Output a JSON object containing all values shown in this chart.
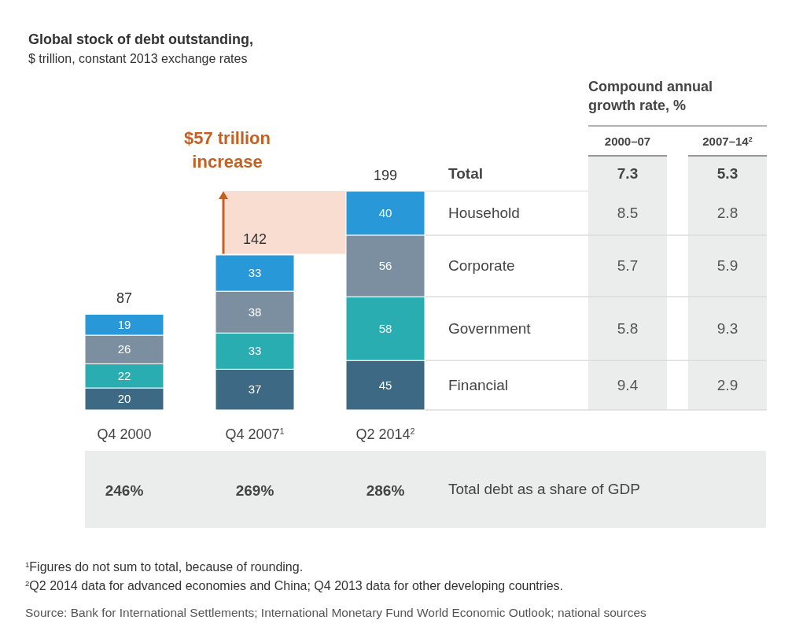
{
  "chart_data": {
    "type": "bar",
    "title": "Global stock of debt outstanding,",
    "subtitle": "$ trillion, constant 2013 exchange rates",
    "categories": [
      "Q4 2000",
      "Q4 2007$^{1}$",
      "Q2 2014$^{2}$"
    ],
    "stacked": true,
    "data_labels": true,
    "totals": [
      "87",
      "142",
      "199"
    ],
    "series": [
      {
        "name": "Financial",
        "color": "#3e6984",
        "values": [
          20,
          37,
          45
        ]
      },
      {
        "name": "Government",
        "color": "#29adb1",
        "values": [
          22,
          33,
          58
        ]
      },
      {
        "name": "Corporate",
        "color": "#7b8fa1",
        "values": [
          26,
          38,
          56
        ]
      },
      {
        "name": "Household",
        "color": "#2898d8",
        "values": [
          19,
          33,
          40
        ]
      }
    ],
    "bands": [
      {
        "axis": "y",
        "from": 142,
        "to": 199,
        "label": "$57 trillion increase",
        "color": "#f9ddd0"
      }
    ],
    "annotations": [
      "Compound annual growth rate, %",
      "2000–07",
      "2007–14$^{2}$",
      "Total",
      "7.3",
      "5.3",
      "8.5",
      "2.8",
      "5.7",
      "5.9",
      "5.8",
      "9.3",
      "9.4",
      "2.9",
      "246%",
      "269%",
      "286%",
      "Total debt as a share of GDP",
      "$^{1}$Figures do not sum to total, because of rounding.",
      "$^{2}$Q2 2014 data for advanced economies and China; Q4 2013 data for other developing countries.",
      "Source: Bank for International Settlements; International Monetary Fund World Economic Outlook; national sources"
    ]
  }
}
